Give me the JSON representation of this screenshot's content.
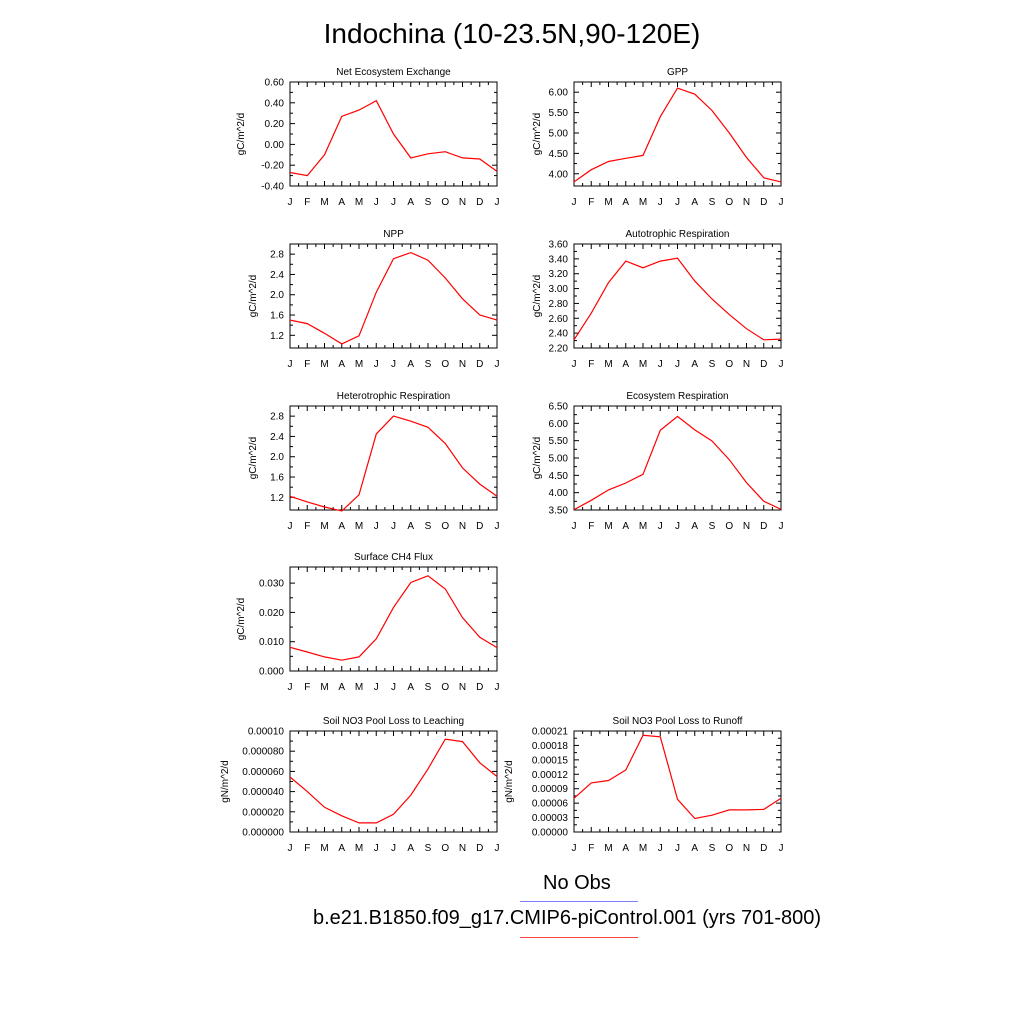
{
  "page": {
    "title": "Indochina (10-23.5N,90-120E)",
    "legend": [
      {
        "label": "No Obs",
        "color": "#8080ff"
      },
      {
        "label": "b.e21.B1850.f09_g17.CMIP6-piControl.001 (yrs 701-800)",
        "color": "#ff4040"
      }
    ],
    "series_color": "#ff0000"
  },
  "chart_data": [
    {
      "type": "line",
      "title": "Net Ecosystem Exchange",
      "ylabel": "gC/m^2/d",
      "categories": [
        "J",
        "F",
        "M",
        "A",
        "M",
        "J",
        "J",
        "A",
        "S",
        "O",
        "N",
        "D",
        "J"
      ],
      "values": [
        -0.27,
        -0.3,
        -0.1,
        0.27,
        0.33,
        0.42,
        0.1,
        -0.13,
        -0.09,
        -0.07,
        -0.13,
        -0.14,
        -0.26
      ],
      "ylim": [
        -0.4,
        0.6
      ],
      "yticks": [
        -0.4,
        -0.2,
        0.0,
        0.2,
        0.4,
        0.6
      ],
      "ytick_labels": [
        "-0.40",
        "-0.20",
        "0.00",
        "0.20",
        "0.40",
        "0.60"
      ],
      "grid": false
    },
    {
      "type": "line",
      "title": "GPP",
      "ylabel": "gC/m^2/d",
      "categories": [
        "J",
        "F",
        "M",
        "A",
        "M",
        "J",
        "J",
        "A",
        "S",
        "O",
        "N",
        "D",
        "J"
      ],
      "values": [
        3.8,
        4.1,
        4.3,
        4.38,
        4.45,
        5.4,
        6.1,
        5.95,
        5.55,
        5.0,
        4.4,
        3.9,
        3.8
      ],
      "ylim": [
        3.7,
        6.25
      ],
      "yticks": [
        4.0,
        4.5,
        5.0,
        5.5,
        6.0
      ],
      "ytick_labels": [
        "4.00",
        "4.50",
        "5.00",
        "5.50",
        "6.00"
      ],
      "grid": false
    },
    {
      "type": "line",
      "title": "NPP",
      "ylabel": "gC/m^2/d",
      "categories": [
        "J",
        "F",
        "M",
        "A",
        "M",
        "J",
        "J",
        "A",
        "S",
        "O",
        "N",
        "D",
        "J"
      ],
      "values": [
        1.5,
        1.43,
        1.24,
        1.03,
        1.19,
        2.05,
        2.71,
        2.83,
        2.68,
        2.33,
        1.92,
        1.6,
        1.5
      ],
      "ylim": [
        0.95,
        3.0
      ],
      "yticks": [
        1.2,
        1.6,
        2.0,
        2.4,
        2.8
      ],
      "ytick_labels": [
        "1.2",
        "1.6",
        "2.0",
        "2.4",
        "2.8"
      ],
      "grid": false
    },
    {
      "type": "line",
      "title": "Autotrophic Respiration",
      "ylabel": "gC/m^2/d",
      "categories": [
        "J",
        "F",
        "M",
        "A",
        "M",
        "J",
        "J",
        "A",
        "S",
        "O",
        "N",
        "D",
        "J"
      ],
      "values": [
        2.31,
        2.67,
        3.08,
        3.37,
        3.28,
        3.37,
        3.41,
        3.1,
        2.86,
        2.65,
        2.46,
        2.31,
        2.32
      ],
      "ylim": [
        2.2,
        3.6
      ],
      "yticks": [
        2.2,
        2.4,
        2.6,
        2.8,
        3.0,
        3.2,
        3.4,
        3.6
      ],
      "ytick_labels": [
        "2.20",
        "2.40",
        "2.60",
        "2.80",
        "3.00",
        "3.20",
        "3.40",
        "3.60"
      ],
      "grid": false
    },
    {
      "type": "line",
      "title": "Heterotrophic Respiration",
      "ylabel": "gC/m^2/d",
      "categories": [
        "J",
        "F",
        "M",
        "A",
        "M",
        "J",
        "J",
        "A",
        "S",
        "O",
        "N",
        "D",
        "J"
      ],
      "values": [
        1.22,
        1.11,
        1.01,
        0.93,
        1.25,
        2.45,
        2.8,
        2.7,
        2.58,
        2.26,
        1.78,
        1.46,
        1.22
      ],
      "ylim": [
        0.95,
        3.0
      ],
      "yticks": [
        1.2,
        1.6,
        2.0,
        2.4,
        2.8
      ],
      "ytick_labels": [
        "1.2",
        "1.6",
        "2.0",
        "2.4",
        "2.8"
      ],
      "grid": false
    },
    {
      "type": "line",
      "title": "Ecosystem Respiration",
      "ylabel": "gC/m^2/d",
      "categories": [
        "J",
        "F",
        "M",
        "A",
        "M",
        "J",
        "J",
        "A",
        "S",
        "O",
        "N",
        "D",
        "J"
      ],
      "values": [
        3.51,
        3.78,
        4.08,
        4.28,
        4.53,
        5.8,
        6.2,
        5.81,
        5.49,
        4.95,
        4.29,
        3.75,
        3.52
      ],
      "ylim": [
        3.5,
        6.5
      ],
      "yticks": [
        3.5,
        4.0,
        4.5,
        5.0,
        5.5,
        6.0,
        6.5
      ],
      "ytick_labels": [
        "3.50",
        "4.00",
        "4.50",
        "5.00",
        "5.50",
        "6.00",
        "6.50"
      ],
      "grid": false
    },
    {
      "type": "line",
      "title": "Surface CH4 Flux",
      "ylabel": "gC/m^2/d",
      "categories": [
        "J",
        "F",
        "M",
        "A",
        "M",
        "J",
        "J",
        "A",
        "S",
        "O",
        "N",
        "D",
        "J"
      ],
      "values": [
        0.0081,
        0.0065,
        0.0048,
        0.0037,
        0.0048,
        0.011,
        0.0217,
        0.0302,
        0.0325,
        0.028,
        0.0182,
        0.0115,
        0.008
      ],
      "ylim": [
        0.0,
        0.0355
      ],
      "yticks": [
        0.0,
        0.01,
        0.02,
        0.03
      ],
      "ytick_labels": [
        "0.000",
        "0.010",
        "0.020",
        "0.030"
      ],
      "grid": false
    },
    {
      "type": "line",
      "title": "Soil NO3 Pool Loss to Leaching",
      "ylabel": "gN/m^2/d",
      "categories": [
        "J",
        "F",
        "M",
        "A",
        "M",
        "J",
        "J",
        "A",
        "S",
        "O",
        "N",
        "D",
        "J"
      ],
      "values": [
        5.45e-05,
        4e-05,
        2.45e-05,
        1.6e-05,
        9e-06,
        9e-06,
        1.75e-05,
        3.65e-05,
        6.25e-05,
        9.2e-05,
        8.95e-05,
        6.85e-05,
        5.5e-05
      ],
      "ylim": [
        0.0,
        0.0001
      ],
      "yticks": [
        0.0,
        2e-05,
        4e-05,
        6e-05,
        8e-05,
        0.0001
      ],
      "ytick_labels": [
        "0.000000",
        "0.000020",
        "0.000040",
        "0.000060",
        "0.000080",
        "0.00010"
      ],
      "grid": false
    },
    {
      "type": "line",
      "title": "Soil NO3 Pool Loss to Runoff",
      "ylabel": "gN/m^2/d",
      "categories": [
        "J",
        "F",
        "M",
        "A",
        "M",
        "J",
        "J",
        "A",
        "S",
        "O",
        "N",
        "D",
        "J"
      ],
      "values": [
        7e-05,
        0.000102,
        0.000107,
        0.000129,
        0.000201,
        0.000198,
        6.8e-05,
        2.8e-05,
        3.5e-05,
        4.6e-05,
        4.6e-05,
        4.7e-05,
        7e-05
      ],
      "ylim": [
        0.0,
        0.00021
      ],
      "yticks": [
        0.0,
        3e-05,
        6e-05,
        9e-05,
        0.00012,
        0.00015,
        0.00018,
        0.00021
      ],
      "ytick_labels": [
        "0.00000",
        "0.00003",
        "0.00006",
        "0.00009",
        "0.00012",
        "0.00015",
        "0.00018",
        "0.00021"
      ],
      "grid": false
    }
  ]
}
